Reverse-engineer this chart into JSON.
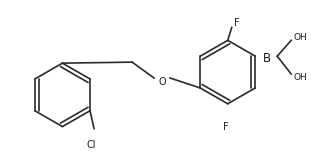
{
  "background_color": "#ffffff",
  "line_color": "#2a2a2a",
  "line_width": 1.2,
  "font_size": 7.0,
  "text_color": "#1a1a1a",
  "figsize": [
    3.34,
    1.58
  ],
  "dpi": 100,
  "xlim": [
    0,
    334
  ],
  "ylim": [
    0,
    158
  ]
}
